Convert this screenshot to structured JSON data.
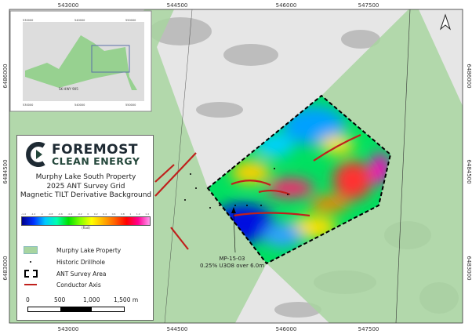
{
  "axes": {
    "x_ticks": [
      "543000",
      "544500",
      "546000",
      "547500"
    ],
    "y_ticks_left": [
      "6486000",
      "6484500",
      "6483000"
    ],
    "y_ticks_right": [
      "6486000",
      "6484500",
      "6483000"
    ]
  },
  "inset": {
    "x_ticks": [
      "530000",
      "540000",
      "550000"
    ],
    "y_ticks": [
      "6490000",
      "6480000"
    ],
    "place_label": "SK HWY 905"
  },
  "logo": {
    "line1": "FOREMOST",
    "line2": "CLEAN ENERGY"
  },
  "title": {
    "line1": "Murphy Lake South Property",
    "line2": "2025 ANT Survey Grid",
    "line3": "Magnetic TILT Derivative Background"
  },
  "colorbar": {
    "ticks": [
      "-1.4",
      "-1.2",
      "-1",
      "-0.8",
      "-0.6",
      "-0.4",
      "-0.2",
      "0",
      "0.2",
      "0.4",
      "0.6",
      "0.8",
      "1",
      "1.2",
      "1.4"
    ],
    "unit": "(Rad)"
  },
  "legend": [
    {
      "label": "Murphy Lake Property",
      "color": "#a8d5a0"
    },
    {
      "label": "Historic Drillhole"
    },
    {
      "label": "ANT Survey Area"
    },
    {
      "label": "Conductor Axis",
      "color": "#c0201c"
    }
  ],
  "scalebar": {
    "labels": [
      "0",
      "500",
      "1,000",
      "1,500 m"
    ]
  },
  "annotation": {
    "line1": "MP-15-03",
    "line2": "0.25% U3O8 over 6.0m"
  },
  "north_arrow": "north-arrow-icon"
}
